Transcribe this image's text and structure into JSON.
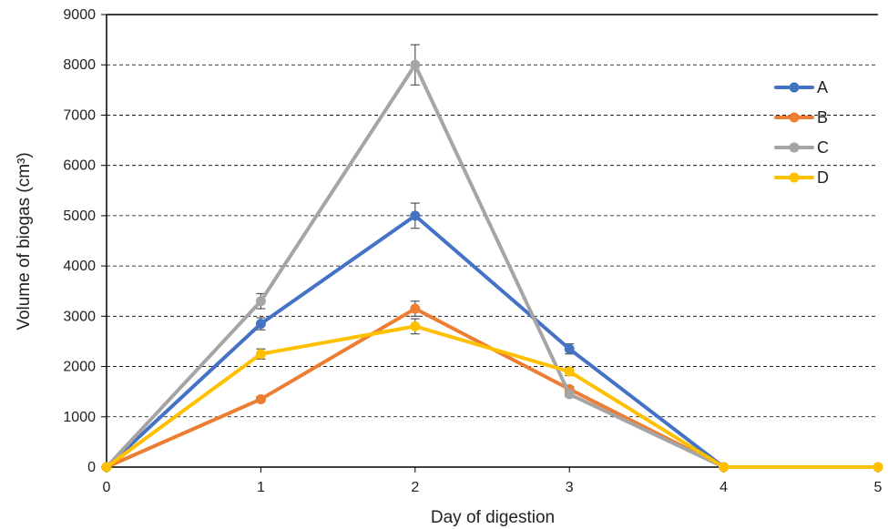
{
  "chart_data": {
    "type": "line",
    "xlabel": "Day of digestion",
    "ylabel": "Volume of biogas (cm³)",
    "xlim": [
      0,
      5
    ],
    "ylim": [
      0,
      9000
    ],
    "x_ticks": [
      "0",
      "1",
      "2",
      "3",
      "4",
      "5"
    ],
    "y_ticks": [
      "0",
      "1000",
      "2000",
      "3000",
      "4000",
      "5000",
      "6000",
      "7000",
      "8000",
      "9000"
    ],
    "grid": "horizontal-dashed",
    "legend_position": "right",
    "series": [
      {
        "name": "A",
        "color": "#4472C4",
        "x": [
          0,
          1,
          2,
          3,
          4
        ],
        "values": [
          0,
          2850,
          5000,
          2350,
          0
        ],
        "errors": [
          0,
          120,
          250,
          100,
          0
        ]
      },
      {
        "name": "B",
        "color": "#ED7D31",
        "x": [
          0,
          1,
          2,
          3,
          4,
          5
        ],
        "values": [
          0,
          1350,
          3150,
          1550,
          0,
          0
        ],
        "errors": [
          0,
          50,
          150,
          50,
          0,
          0
        ]
      },
      {
        "name": "C",
        "color": "#A5A5A5",
        "x": [
          0,
          1,
          2,
          3,
          4
        ],
        "values": [
          0,
          3300,
          8000,
          1450,
          0
        ],
        "errors": [
          0,
          150,
          400,
          50,
          0
        ]
      },
      {
        "name": "D",
        "color": "#FFC000",
        "x": [
          0,
          1,
          2,
          3,
          4,
          5
        ],
        "values": [
          0,
          2250,
          2800,
          1900,
          0,
          0
        ],
        "errors": [
          0,
          100,
          150,
          80,
          0,
          0
        ]
      }
    ]
  }
}
